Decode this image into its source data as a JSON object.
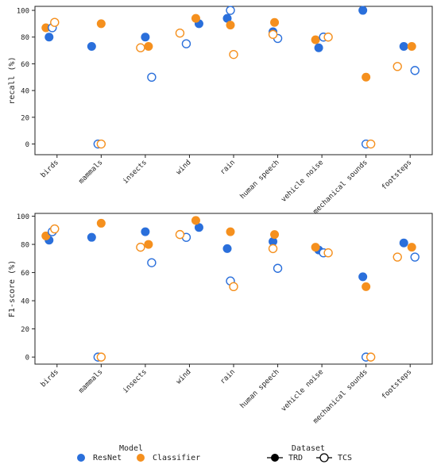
{
  "colors": {
    "resnet": "#2a6fdb",
    "classifier": "#f5901e",
    "axis": "#222222"
  },
  "chart_data": [
    {
      "type": "scatter",
      "ylabel": "recall (%)",
      "ylim": [
        -8,
        103
      ],
      "yticks": [
        0,
        20,
        40,
        60,
        80,
        100
      ],
      "grid": false,
      "categories": [
        "birds",
        "mammals",
        "insects",
        "wind",
        "rain",
        "human speech",
        "vehicle noise",
        "mechanical sounds",
        "footsteps"
      ],
      "series": [
        {
          "name": "ResNet",
          "dataset": "TRD",
          "values": [
            80,
            73,
            80,
            90,
            94,
            84,
            72,
            100,
            73
          ]
        },
        {
          "name": "Classifier",
          "dataset": "TRD",
          "values": [
            87,
            90,
            73,
            94,
            89,
            91,
            78,
            50,
            73
          ]
        },
        {
          "name": "ResNet",
          "dataset": "TCS",
          "values": [
            87,
            0,
            50,
            75,
            100,
            79,
            80,
            0,
            55
          ]
        },
        {
          "name": "Classifier",
          "dataset": "TCS",
          "values": [
            91,
            0,
            72,
            83,
            67,
            82,
            80,
            0,
            58
          ]
        }
      ]
    },
    {
      "type": "scatter",
      "ylabel": "F1-score (%)",
      "ylim": [
        -5,
        102
      ],
      "yticks": [
        0,
        20,
        40,
        60,
        80,
        100
      ],
      "grid": false,
      "categories": [
        "birds",
        "mammals",
        "insects",
        "wind",
        "rain",
        "human speech",
        "vehicle noise",
        "mechanical sounds",
        "footsteps"
      ],
      "series": [
        {
          "name": "ResNet",
          "dataset": "TRD",
          "values": [
            83,
            85,
            89,
            92,
            77,
            82,
            76,
            57,
            81
          ]
        },
        {
          "name": "Classifier",
          "dataset": "TRD",
          "values": [
            86,
            95,
            80,
            97,
            89,
            87,
            78,
            50,
            78
          ]
        },
        {
          "name": "ResNet",
          "dataset": "TCS",
          "values": [
            89,
            0,
            67,
            85,
            54,
            63,
            74,
            0,
            71
          ]
        },
        {
          "name": "Classifier",
          "dataset": "TCS",
          "values": [
            91,
            0,
            78,
            87,
            50,
            77,
            74,
            0,
            71
          ]
        }
      ]
    }
  ],
  "legend": {
    "model_title": "Model",
    "model_entries": [
      "ResNet",
      "Classifier"
    ],
    "dataset_title": "Dataset",
    "dataset_entries": [
      "TRD",
      "TCS"
    ]
  }
}
